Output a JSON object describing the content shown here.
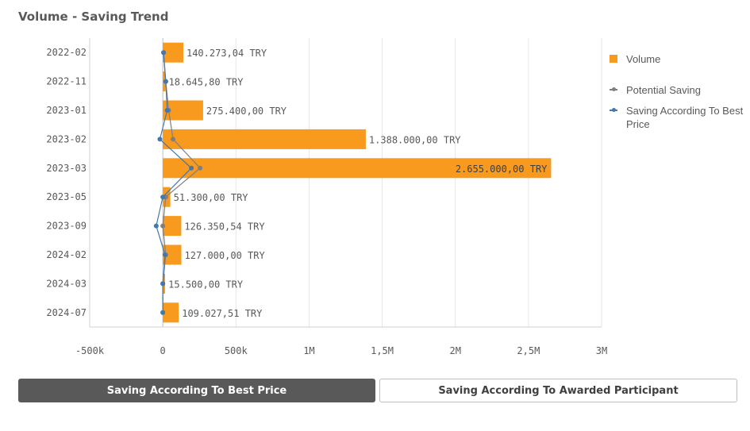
{
  "title": "Volume - Saving Trend",
  "legend": {
    "volume": "Volume",
    "potential": "Potential Saving",
    "best_price": "Saving According To Best Price"
  },
  "colors": {
    "volume": "#f89a1e",
    "potential": "#7f7f7f",
    "best_price": "#4477aa"
  },
  "buttons": {
    "best_price": "Saving According To Best Price",
    "awarded": "Saving According To Awarded Participant"
  },
  "chart_data": {
    "type": "bar",
    "orientation": "horizontal",
    "title": "Volume - Saving Trend",
    "categories": [
      "2022-02",
      "2022-11",
      "2023-01",
      "2023-02",
      "2023-03",
      "2023-05",
      "2023-09",
      "2024-02",
      "2024-03",
      "2024-07"
    ],
    "series": [
      {
        "name": "Volume",
        "type": "bar",
        "values": [
          140273.04,
          18645.8,
          275400.0,
          1388000.0,
          2655000.0,
          51300.0,
          126350.54,
          127000.0,
          15500.0,
          109027.51
        ],
        "labels": [
          "140.273,04 TRY",
          "18.645,80 TRY",
          "275.400,00 TRY",
          "1.388.000,00 TRY",
          "2.655.000,00 TRY",
          "51.300,00 TRY",
          "126.350,54 TRY",
          "127.000,00 TRY",
          "15.500,00 TRY",
          "109.027,51 TRY"
        ]
      },
      {
        "name": "Potential Saving",
        "type": "line",
        "values": [
          5000,
          20000,
          40000,
          70000,
          255000,
          20000,
          0,
          20000,
          0,
          0
        ]
      },
      {
        "name": "Saving According To Best Price",
        "type": "line",
        "values": [
          5000,
          20000,
          30000,
          -20000,
          195000,
          0,
          -45000,
          15000,
          0,
          0
        ]
      }
    ],
    "xlim": [
      -500000,
      3000000
    ],
    "xticks": [
      -500000,
      0,
      500000,
      1000000,
      1500000,
      2000000,
      2500000,
      3000000
    ],
    "xtick_labels": [
      "-500k",
      "0",
      "500k",
      "1M",
      "1,5M",
      "2M",
      "2,5M",
      "3M"
    ],
    "grid": true,
    "legend_position": "right"
  }
}
